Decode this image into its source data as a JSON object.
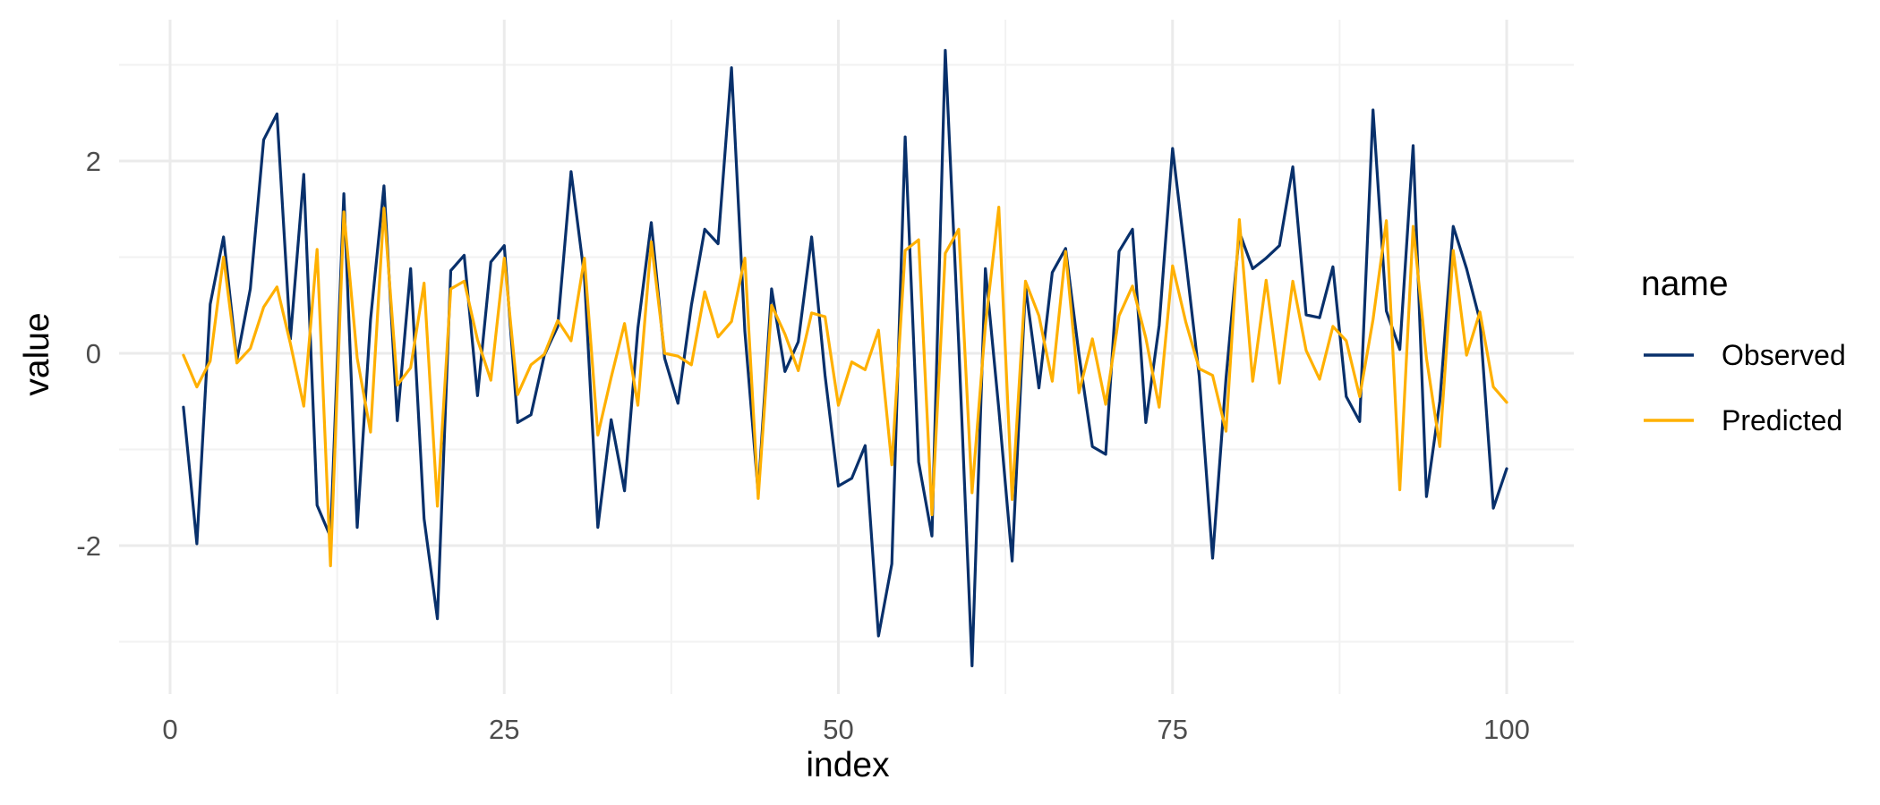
{
  "chart_data": {
    "type": "line",
    "xlabel": "index",
    "ylabel": "value",
    "xlim": [
      0,
      100
    ],
    "ylim": [
      -3.4,
      3.4
    ],
    "x_ticks": [
      0,
      25,
      50,
      75,
      100
    ],
    "y_ticks": [
      -2,
      0,
      2
    ],
    "grid": true,
    "legend": {
      "title": "name",
      "position": "right"
    },
    "series": [
      {
        "name": "Observed",
        "color": "#08306b",
        "x": [
          1,
          2,
          3,
          4,
          5,
          6,
          7,
          8,
          9,
          10,
          11,
          12,
          13,
          14,
          15,
          16,
          17,
          18,
          19,
          20,
          21,
          22,
          23,
          24,
          25,
          26,
          27,
          28,
          29,
          30,
          31,
          32,
          33,
          34,
          35,
          36,
          37,
          38,
          39,
          40,
          41,
          42,
          43,
          44,
          45,
          46,
          47,
          48,
          49,
          50,
          51,
          52,
          53,
          54,
          55,
          56,
          57,
          58,
          59,
          60,
          61,
          62,
          63,
          64,
          65,
          66,
          67,
          68,
          69,
          70,
          71,
          72,
          73,
          74,
          75,
          76,
          77,
          78,
          79,
          80,
          81,
          82,
          83,
          84,
          85,
          86,
          87,
          88,
          89,
          90,
          91,
          92,
          93,
          94,
          95,
          96,
          97,
          98,
          99,
          100
        ],
        "values": [
          -0.56,
          -1.98,
          0.51,
          1.21,
          -0.07,
          0.67,
          2.22,
          2.49,
          0.15,
          1.86,
          -1.58,
          -1.91,
          1.66,
          -1.81,
          0.35,
          1.74,
          -0.7,
          0.88,
          -1.72,
          -2.76,
          0.86,
          1.02,
          -0.44,
          0.95,
          1.12,
          -0.72,
          -0.64,
          -0.02,
          0.28,
          1.89,
          0.8,
          -1.81,
          -0.69,
          -1.43,
          0.26,
          1.36,
          -0.05,
          -0.52,
          0.5,
          1.29,
          1.14,
          2.97,
          0.23,
          -1.45,
          0.67,
          -0.19,
          0.12,
          1.21,
          -0.23,
          -1.38,
          -1.3,
          -0.96,
          -2.94,
          -2.19,
          2.25,
          -1.13,
          -1.9,
          3.15,
          0.1,
          -3.25,
          0.88,
          -0.58,
          -2.16,
          0.7,
          -0.36,
          0.84,
          1.09,
          -0.01,
          -0.97,
          -1.05,
          1.06,
          1.29,
          -0.72,
          0.29,
          2.13,
          0.96,
          -0.24,
          -2.13,
          -0.26,
          1.26,
          0.88,
          0.99,
          1.12,
          1.94,
          0.4,
          0.37,
          0.9,
          -0.45,
          -0.71,
          2.53,
          0.44,
          0.04,
          2.16,
          -1.49,
          -0.5,
          1.32,
          0.88,
          0.34,
          -1.61,
          -1.2
        ]
      },
      {
        "name": "Predicted",
        "color": "#ffb000",
        "x": [
          1,
          2,
          3,
          4,
          5,
          6,
          7,
          8,
          9,
          10,
          11,
          12,
          13,
          14,
          15,
          16,
          17,
          18,
          19,
          20,
          21,
          22,
          23,
          24,
          25,
          26,
          27,
          28,
          29,
          30,
          31,
          32,
          33,
          34,
          35,
          36,
          37,
          38,
          39,
          40,
          41,
          42,
          43,
          44,
          45,
          46,
          47,
          48,
          49,
          50,
          51,
          52,
          53,
          54,
          55,
          56,
          57,
          58,
          59,
          60,
          61,
          62,
          63,
          64,
          65,
          66,
          67,
          68,
          69,
          70,
          71,
          72,
          73,
          74,
          75,
          76,
          77,
          78,
          79,
          80,
          81,
          82,
          83,
          84,
          85,
          86,
          87,
          88,
          89,
          90,
          91,
          92,
          93,
          94,
          95,
          96,
          97,
          98,
          99,
          100
        ],
        "values": [
          -0.02,
          -0.35,
          -0.08,
          1.0,
          -0.1,
          0.05,
          0.48,
          0.69,
          0.1,
          -0.55,
          1.08,
          -2.21,
          1.47,
          -0.05,
          -0.82,
          1.51,
          -0.33,
          -0.15,
          0.73,
          -1.59,
          0.67,
          0.75,
          0.14,
          -0.28,
          0.99,
          -0.43,
          -0.12,
          -0.01,
          0.34,
          0.13,
          0.99,
          -0.85,
          -0.25,
          0.31,
          -0.54,
          1.16,
          0.0,
          -0.03,
          -0.12,
          0.64,
          0.17,
          0.33,
          0.99,
          -1.51,
          0.5,
          0.2,
          -0.18,
          0.42,
          0.38,
          -0.54,
          -0.09,
          -0.17,
          0.24,
          -1.16,
          1.07,
          1.18,
          -1.68,
          1.04,
          1.29,
          -1.45,
          0.29,
          1.52,
          -1.52,
          0.75,
          0.39,
          -0.29,
          1.06,
          -0.41,
          0.15,
          -0.53,
          0.39,
          0.7,
          0.16,
          -0.56,
          0.91,
          0.32,
          -0.16,
          -0.23,
          -0.81,
          1.39,
          -0.29,
          0.76,
          -0.31,
          0.75,
          0.03,
          -0.27,
          0.28,
          0.13,
          -0.45,
          0.35,
          1.38,
          -1.42,
          1.32,
          -0.05,
          -0.97,
          1.07,
          -0.02,
          0.43,
          -0.35,
          -0.51
        ]
      }
    ]
  }
}
